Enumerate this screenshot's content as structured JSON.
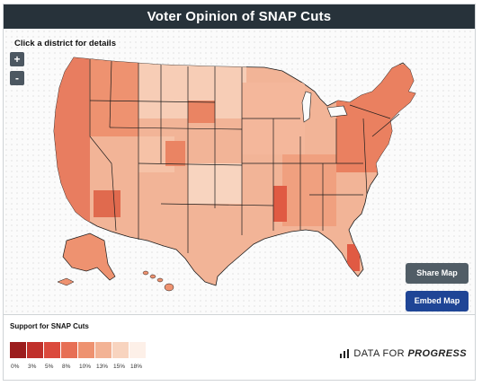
{
  "title": "Voter Opinion of SNAP Cuts",
  "hint": "Click a district for details",
  "zoom": {
    "in_label": "+",
    "out_label": "-"
  },
  "buttons": {
    "share": "Share Map",
    "embed": "Embed Map"
  },
  "legend": {
    "title": "Support for SNAP Cuts",
    "items": [
      {
        "label": "0%",
        "color": "#9c1d1d"
      },
      {
        "label": "3%",
        "color": "#c0302b"
      },
      {
        "label": "5%",
        "color": "#db4a3d"
      },
      {
        "label": "8%",
        "color": "#e76f55"
      },
      {
        "label": "10%",
        "color": "#ee9270"
      },
      {
        "label": "13%",
        "color": "#f3b395"
      },
      {
        "label": "15%",
        "color": "#f8d4bf"
      },
      {
        "label": "18%",
        "color": "#fdf0e8"
      }
    ]
  },
  "brand": {
    "part1": "DATA FOR",
    "part2": "PROGRESS"
  },
  "map": {
    "land_color": "#f2b497",
    "border_color": "#1c1c1c",
    "water_color": "#fbfbfb"
  }
}
